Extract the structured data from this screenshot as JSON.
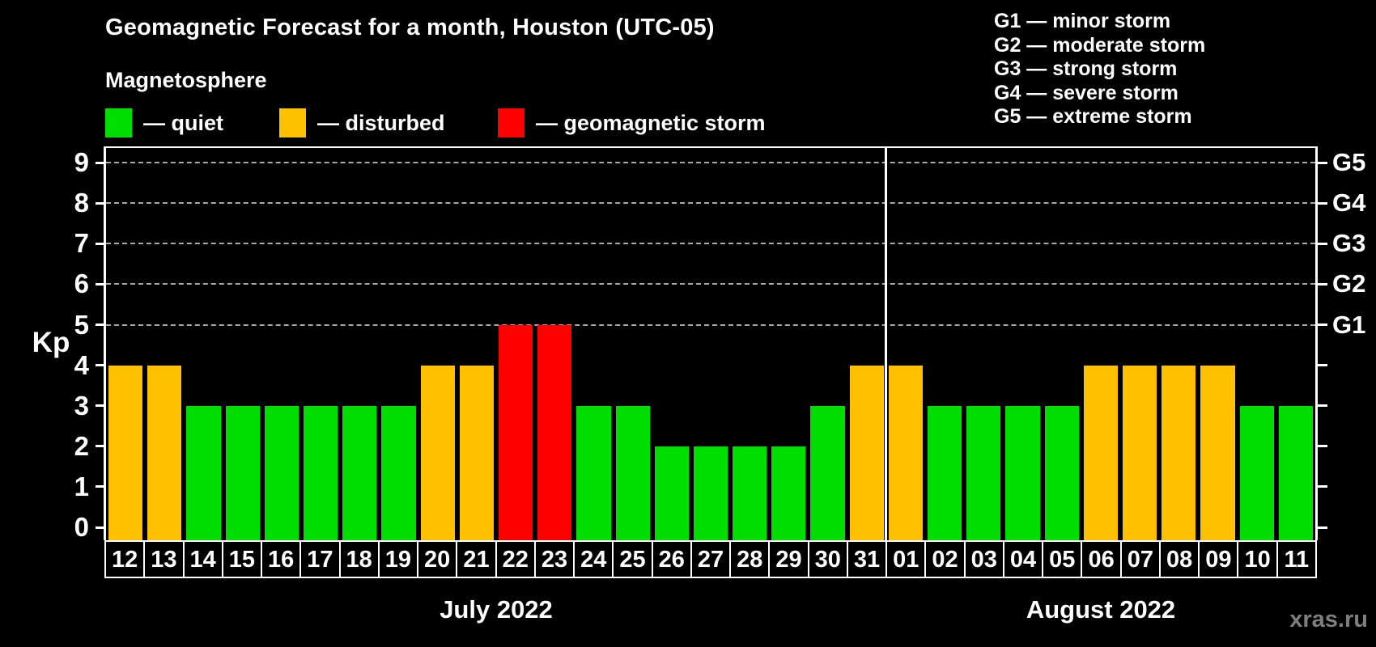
{
  "header": {
    "title": "Geomagnetic Forecast for a month, Houston (UTC-05)",
    "subtitle": "Magnetosphere",
    "legend": [
      {
        "key": "quiet",
        "label": "— quiet"
      },
      {
        "key": "disturbed",
        "label": "— disturbed"
      },
      {
        "key": "storm",
        "label": "— geomagnetic storm"
      }
    ],
    "g_scale_legend": [
      "G1 — minor storm",
      "G2 — moderate storm",
      "G3 — strong storm",
      "G4 — severe storm",
      "G5 — extreme storm"
    ]
  },
  "chart_data": {
    "type": "bar",
    "title": "Geomagnetic Forecast for a month, Houston (UTC-05)",
    "ylabel": "Kp",
    "xlabel": "",
    "ylim": [
      0,
      9
    ],
    "yticks": [
      0,
      1,
      2,
      3,
      4,
      5,
      6,
      7,
      8,
      9
    ],
    "grid": "horizontal dashed lines at Kp 5..9 only",
    "gridlines_at_kp": [
      5,
      6,
      7,
      8,
      9
    ],
    "right_axis": [
      {
        "kp": 5,
        "label": "G1"
      },
      {
        "kp": 6,
        "label": "G2"
      },
      {
        "kp": 7,
        "label": "G3"
      },
      {
        "kp": 8,
        "label": "G4"
      },
      {
        "kp": 9,
        "label": "G5"
      }
    ],
    "legend_position": "top-left",
    "status_colors": {
      "quiet": "#00DD00",
      "disturbed": "#FFC000",
      "storm": "#FF0000"
    },
    "months": [
      {
        "label": "July 2022",
        "days": [
          {
            "day": "12",
            "kp": 4,
            "status": "disturbed"
          },
          {
            "day": "13",
            "kp": 4,
            "status": "disturbed"
          },
          {
            "day": "14",
            "kp": 3,
            "status": "quiet"
          },
          {
            "day": "15",
            "kp": 3,
            "status": "quiet"
          },
          {
            "day": "16",
            "kp": 3,
            "status": "quiet"
          },
          {
            "day": "17",
            "kp": 3,
            "status": "quiet"
          },
          {
            "day": "18",
            "kp": 3,
            "status": "quiet"
          },
          {
            "day": "19",
            "kp": 3,
            "status": "quiet"
          },
          {
            "day": "20",
            "kp": 4,
            "status": "disturbed"
          },
          {
            "day": "21",
            "kp": 4,
            "status": "disturbed"
          },
          {
            "day": "22",
            "kp": 5,
            "status": "storm"
          },
          {
            "day": "23",
            "kp": 5,
            "status": "storm"
          },
          {
            "day": "24",
            "kp": 3,
            "status": "quiet"
          },
          {
            "day": "25",
            "kp": 3,
            "status": "quiet"
          },
          {
            "day": "26",
            "kp": 2,
            "status": "quiet"
          },
          {
            "day": "27",
            "kp": 2,
            "status": "quiet"
          },
          {
            "day": "28",
            "kp": 2,
            "status": "quiet"
          },
          {
            "day": "29",
            "kp": 2,
            "status": "quiet"
          },
          {
            "day": "30",
            "kp": 3,
            "status": "quiet"
          },
          {
            "day": "31",
            "kp": 4,
            "status": "disturbed"
          }
        ]
      },
      {
        "label": "August 2022",
        "days": [
          {
            "day": "01",
            "kp": 4,
            "status": "disturbed"
          },
          {
            "day": "02",
            "kp": 3,
            "status": "quiet"
          },
          {
            "day": "03",
            "kp": 3,
            "status": "quiet"
          },
          {
            "day": "04",
            "kp": 3,
            "status": "quiet"
          },
          {
            "day": "05",
            "kp": 3,
            "status": "quiet"
          },
          {
            "day": "06",
            "kp": 4,
            "status": "disturbed"
          },
          {
            "day": "07",
            "kp": 4,
            "status": "disturbed"
          },
          {
            "day": "08",
            "kp": 4,
            "status": "disturbed"
          },
          {
            "day": "09",
            "kp": 4,
            "status": "disturbed"
          },
          {
            "day": "10",
            "kp": 3,
            "status": "quiet"
          },
          {
            "day": "11",
            "kp": 3,
            "status": "quiet"
          }
        ]
      }
    ]
  },
  "watermark": "xras.ru"
}
